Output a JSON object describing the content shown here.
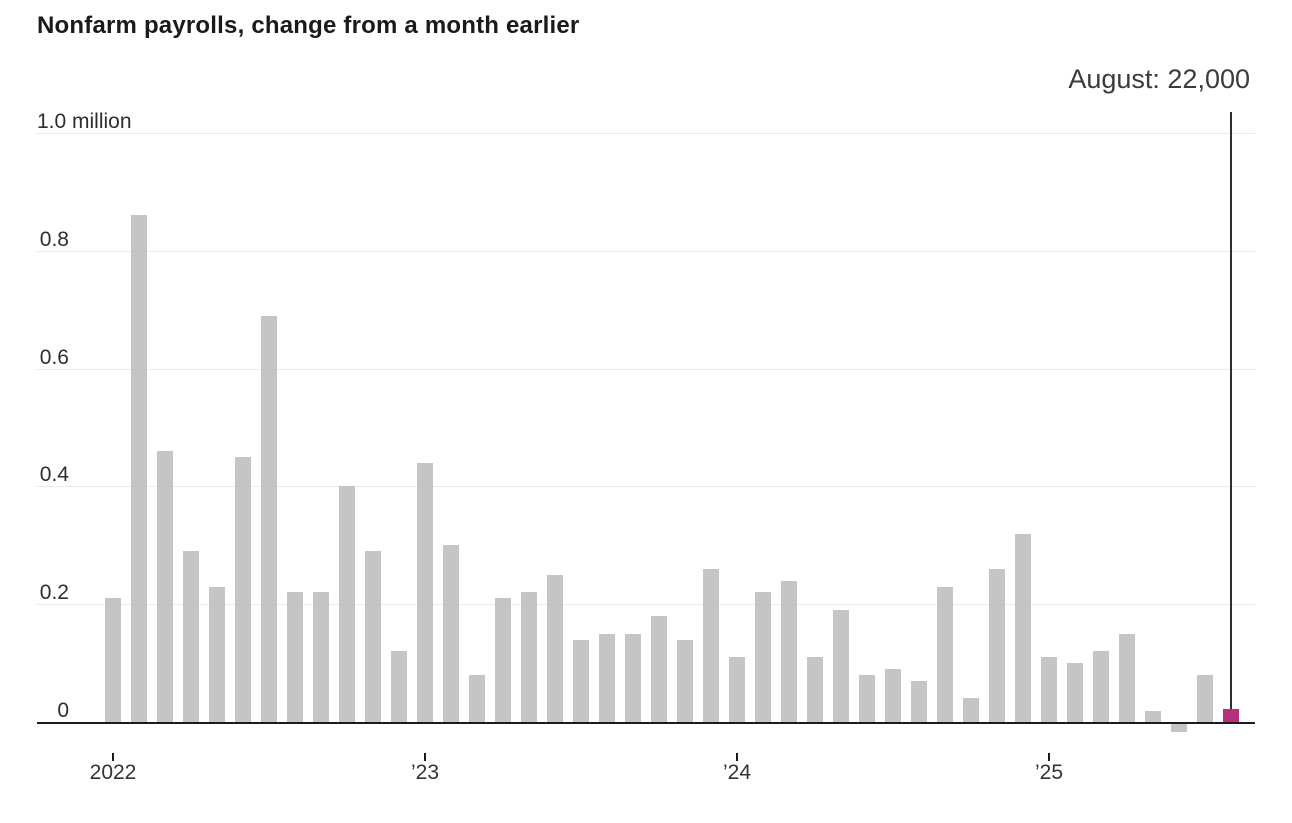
{
  "title": "Nonfarm payrolls, change from a month earlier",
  "annotation": {
    "label": "August: 22,000"
  },
  "colors": {
    "bar": "#c5c5c5",
    "highlight_bar": "#b5307a",
    "gridline": "#e9e9e9",
    "axis_line": "#1b1b1b",
    "annotation_line": "#2e2e2e",
    "tick": "#1b1b1b",
    "title_text": "#1a1a1a",
    "annotation_text": "#3b3b3b",
    "axis_label_text": "#333333"
  },
  "chart_data": {
    "type": "bar",
    "title": "Nonfarm payrolls, change from a month earlier",
    "unit": "million (values listed in thousands)",
    "highlight_annotation": "August: 22,000",
    "legend": "none",
    "grid": "horizontal gridlines on",
    "y_axis": {
      "tick_labels": [
        "1.0 million",
        "0.8",
        "0.6",
        "0.4",
        "0.2",
        "0"
      ],
      "tick_values": [
        1.0,
        0.8,
        0.6,
        0.4,
        0.2,
        0
      ],
      "range_million": [
        -0.05,
        1.0
      ]
    },
    "x_axis": {
      "tick_labels": [
        "2022",
        "’23",
        "’24",
        "’25"
      ],
      "tick_month_index": [
        0,
        12,
        24,
        36
      ]
    },
    "categories": [
      "Jan 2022",
      "Feb 2022",
      "Mar 2022",
      "Apr 2022",
      "May 2022",
      "Jun 2022",
      "Jul 2022",
      "Aug 2022",
      "Sep 2022",
      "Oct 2022",
      "Nov 2022",
      "Dec 2022",
      "Jan 2023",
      "Feb 2023",
      "Mar 2023",
      "Apr 2023",
      "May 2023",
      "Jun 2023",
      "Jul 2023",
      "Aug 2023",
      "Sep 2023",
      "Oct 2023",
      "Nov 2023",
      "Dec 2023",
      "Jan 2024",
      "Feb 2024",
      "Mar 2024",
      "Apr 2024",
      "May 2024",
      "Jun 2024",
      "Jul 2024",
      "Aug 2024",
      "Sep 2024",
      "Oct 2024",
      "Nov 2024",
      "Dec 2024",
      "Jan 2025",
      "Feb 2025",
      "Mar 2025",
      "Apr 2025",
      "May 2025",
      "Jun 2025",
      "Jul 2025",
      "Aug 2025"
    ],
    "values_thousands": [
      210,
      860,
      460,
      290,
      230,
      450,
      690,
      220,
      220,
      400,
      290,
      120,
      440,
      300,
      80,
      210,
      220,
      250,
      140,
      150,
      150,
      180,
      140,
      260,
      110,
      220,
      240,
      110,
      190,
      80,
      90,
      70,
      230,
      40,
      260,
      320,
      110,
      100,
      120,
      150,
      19,
      -13,
      80,
      22
    ],
    "highlight_index": 43,
    "highlight_value_thousands": 22
  }
}
